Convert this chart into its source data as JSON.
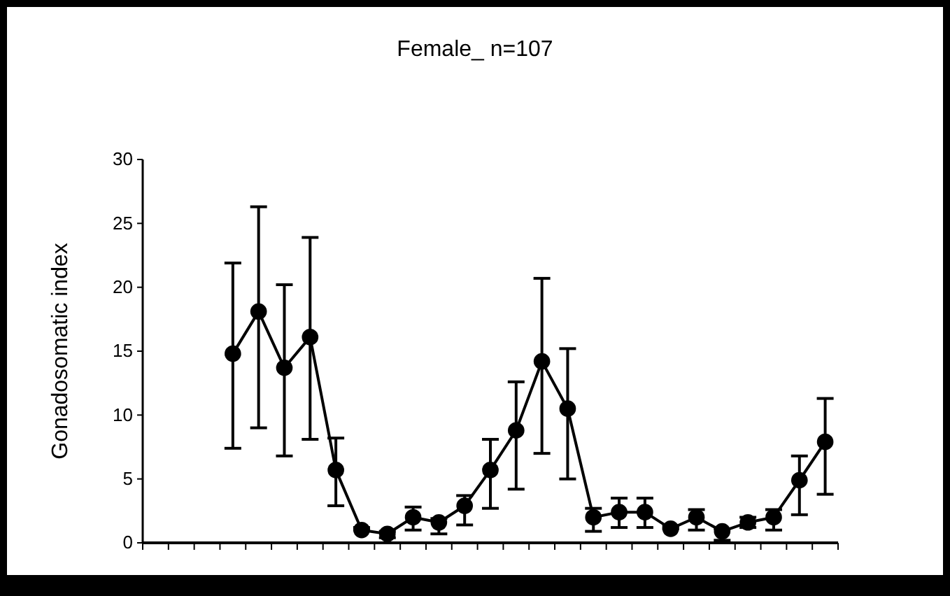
{
  "chart_data": {
    "type": "line",
    "title": "Female_ n=107",
    "ylabel": "Gonadosomatic index",
    "categories": [
      null,
      null,
      null,
      null,
      null,
      null,
      null,
      null,
      null,
      null,
      null,
      null,
      null,
      null,
      null,
      null,
      null,
      null,
      null,
      null,
      null,
      null,
      null,
      null,
      null,
      null,
      null
    ],
    "series": [
      {
        "color": "#000000",
        "values": [
          null,
          null,
          null,
          14.8,
          18.1,
          13.7,
          16.1,
          5.7,
          1.0,
          0.7,
          2.0,
          1.6,
          2.9,
          5.7,
          8.8,
          14.2,
          10.5,
          2.0,
          2.4,
          2.4,
          1.1,
          2.0,
          0.9,
          1.6,
          2.0,
          4.9,
          7.9
        ],
        "errors": [
          null,
          null,
          null,
          [
            7.4,
            21.9
          ],
          [
            9.0,
            26.3
          ],
          [
            6.8,
            20.2
          ],
          [
            8.1,
            23.9
          ],
          [
            2.9,
            8.2
          ],
          [
            1.0,
            1.2
          ],
          [
            0.4,
            0.9
          ],
          [
            1.0,
            2.8
          ],
          [
            0.7,
            1.9
          ],
          [
            1.4,
            3.7
          ],
          [
            2.7,
            8.1
          ],
          [
            4.2,
            12.6
          ],
          [
            7.0,
            20.7
          ],
          [
            5.0,
            15.2
          ],
          [
            0.9,
            2.7
          ],
          [
            1.2,
            3.5
          ],
          [
            1.2,
            3.5
          ],
          [
            1.1,
            1.3
          ],
          [
            1.0,
            2.6
          ],
          [
            0.2,
            1.1
          ],
          [
            1.2,
            2.0
          ],
          [
            1.0,
            2.6
          ],
          [
            2.2,
            6.8
          ],
          [
            3.8,
            11.3
          ]
        ]
      }
    ],
    "ylim": [
      0,
      30
    ],
    "yticks": [
      0,
      5,
      10,
      15,
      20,
      25,
      30
    ],
    "marker": "circle",
    "line_style": "solid",
    "grid": false
  }
}
